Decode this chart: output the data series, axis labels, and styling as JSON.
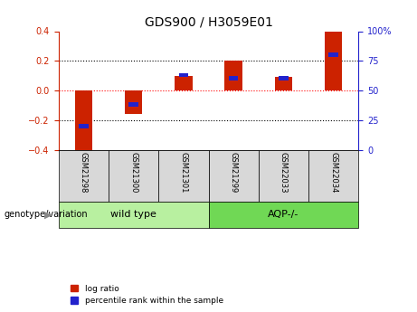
{
  "title": "GDS900 / H3059E01",
  "categories": [
    "GSM21298",
    "GSM21300",
    "GSM21301",
    "GSM21299",
    "GSM22033",
    "GSM22034"
  ],
  "log_ratio": [
    -0.41,
    -0.16,
    0.1,
    0.2,
    0.09,
    0.4
  ],
  "percentile_rank": [
    20,
    38,
    63,
    60,
    60,
    80
  ],
  "groups": [
    {
      "label": "wild type",
      "indices": [
        0,
        1,
        2
      ],
      "color": "#b8f0a0"
    },
    {
      "label": "AQP-/-",
      "indices": [
        3,
        4,
        5
      ],
      "color": "#70d855"
    }
  ],
  "group_label": "genotype/variation",
  "bar_color_red": "#cc2200",
  "bar_color_blue": "#2222cc",
  "ylim_left": [
    -0.4,
    0.4
  ],
  "ylim_right": [
    0,
    100
  ],
  "yticks_left": [
    -0.4,
    -0.2,
    0.0,
    0.2,
    0.4
  ],
  "yticks_right": [
    0,
    25,
    50,
    75,
    100
  ],
  "background_color": "#ffffff",
  "legend_red_label": "log ratio",
  "legend_blue_label": "percentile rank within the sample",
  "bar_width": 0.35,
  "blue_bar_height": 0.03
}
